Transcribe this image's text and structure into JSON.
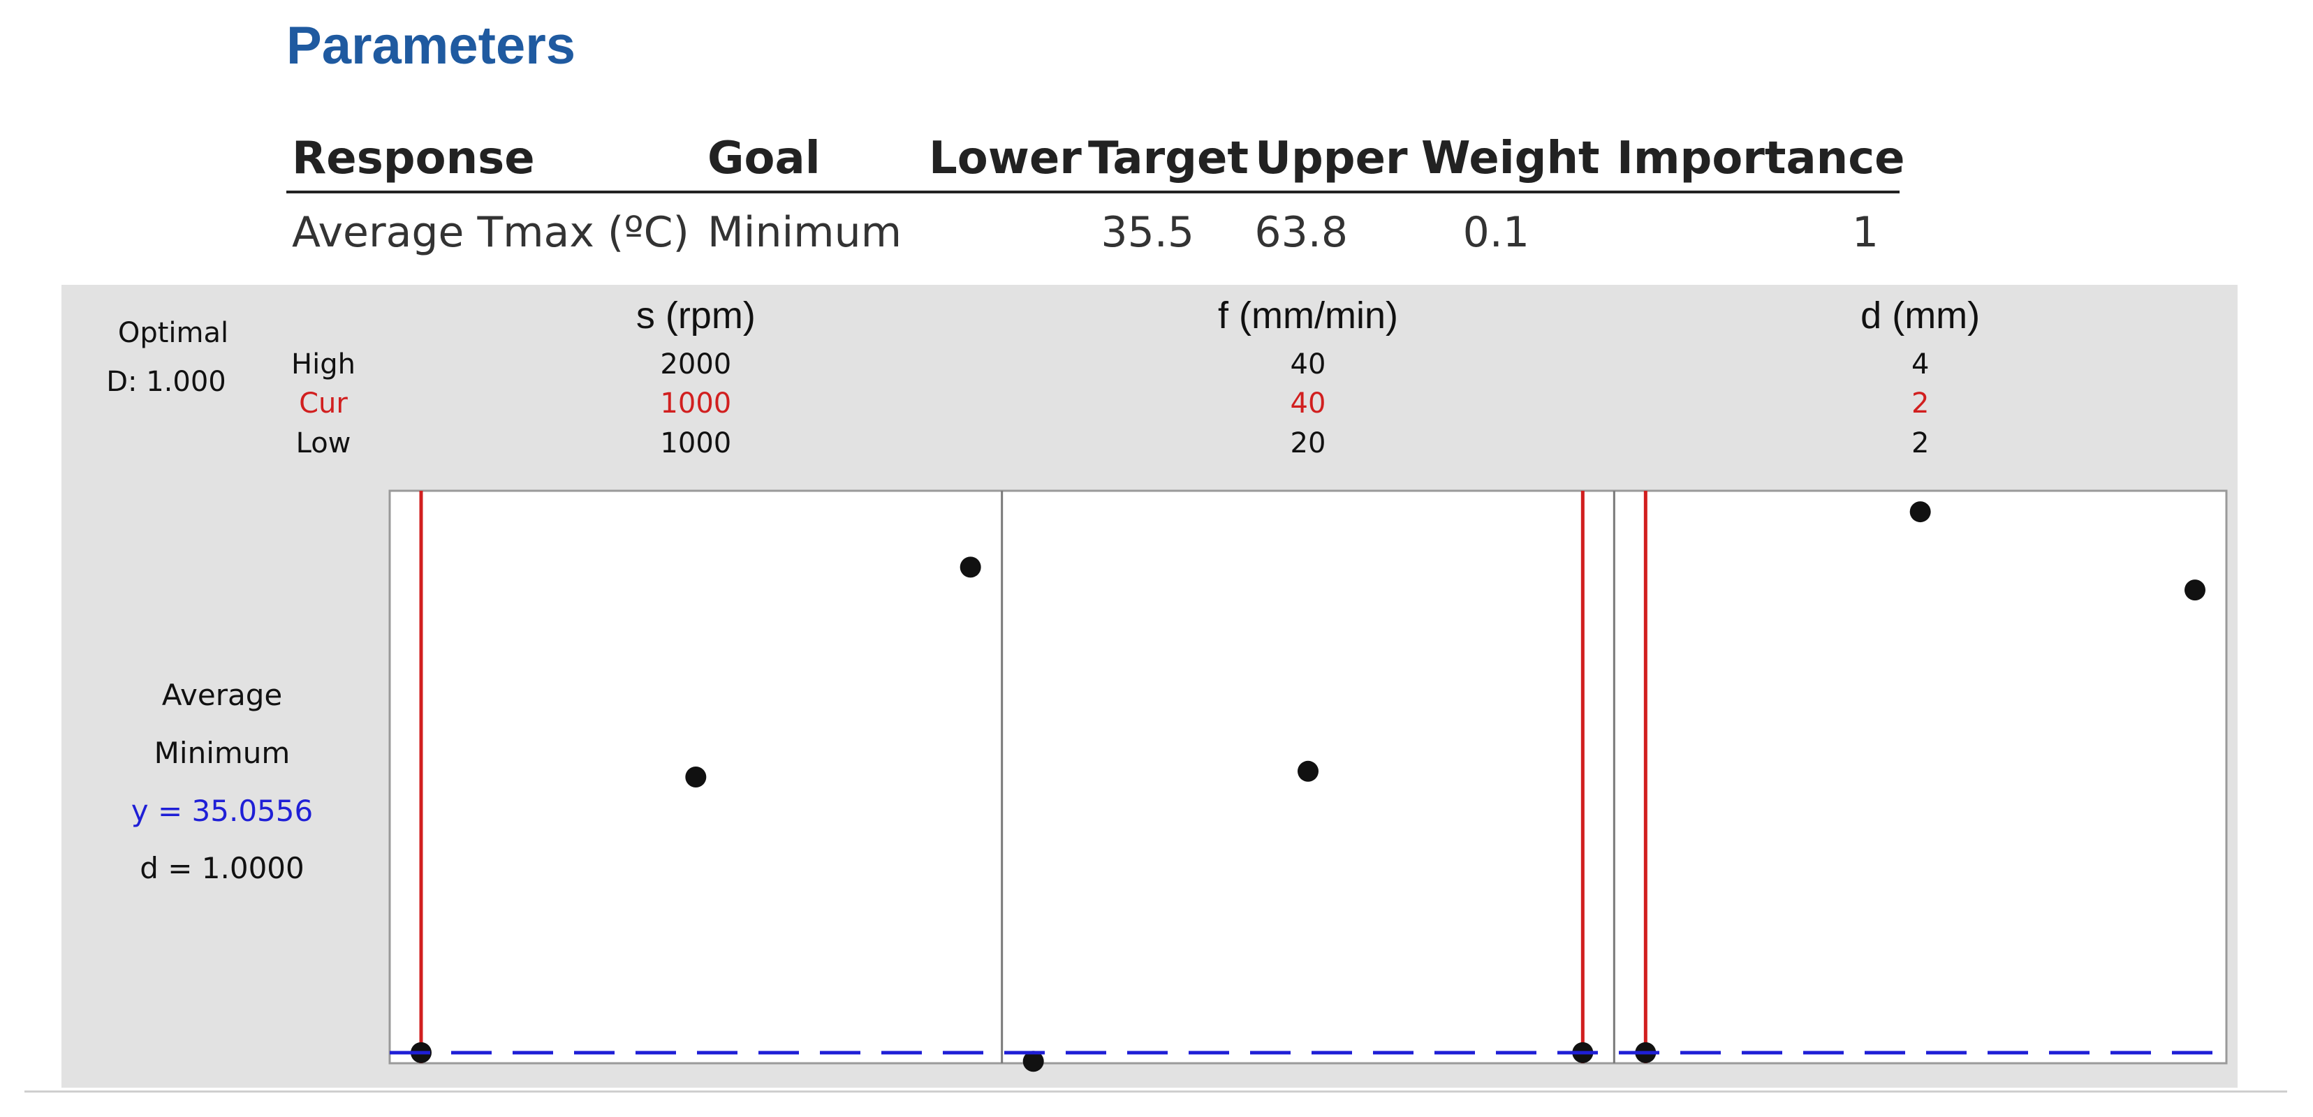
{
  "heading": "Parameters",
  "parameters_table": {
    "headers": [
      "Response",
      "Goal",
      "Lower",
      "Target",
      "Upper",
      "Weight",
      "Importance"
    ],
    "row": {
      "response": "Average Tmax (ºC)",
      "goal": "Minimum",
      "lower": "",
      "target": "35.5",
      "upper": "63.8",
      "weight": "0.1",
      "importance": "1"
    }
  },
  "optimizer": {
    "optimal_label": "Optimal",
    "desirability_label": "D: 1.000",
    "level_labels": {
      "high": "High",
      "cur": "Cur",
      "low": "Low"
    },
    "response_block": {
      "name": "Average",
      "goal": "Minimum",
      "y_text": "y = 35.0556",
      "d_text": "d = 1.0000"
    },
    "colors": {
      "current": "#d11f1f",
      "predicted": "#1f1fd6",
      "point": "#111111",
      "panel": "#e2e2e2"
    }
  },
  "chart_data": {
    "type": "scatter",
    "y_predicted": 35.0556,
    "y_range": [
      34.5,
      64.5
    ],
    "factors": [
      {
        "name": "s (rpm)",
        "high": "2000",
        "cur": "1000",
        "low": "1000",
        "x_range": [
          1000,
          2000
        ],
        "current_x": 1000,
        "points": [
          [
            1000,
            35.0556
          ],
          [
            1500,
            49.5
          ],
          [
            2000,
            60.5
          ]
        ]
      },
      {
        "name": "f (mm/min)",
        "high": "40",
        "cur": "40",
        "low": "20",
        "x_range": [
          20,
          40
        ],
        "current_x": 40,
        "points": [
          [
            20,
            34.6
          ],
          [
            30,
            49.8
          ],
          [
            40,
            35.0556
          ]
        ]
      },
      {
        "name": "d (mm)",
        "high": "4",
        "cur": "2",
        "low": "2",
        "x_range": [
          2,
          4
        ],
        "current_x": 2,
        "points": [
          [
            2,
            35.0556
          ],
          [
            3,
            63.4
          ],
          [
            4,
            59.3
          ]
        ]
      }
    ]
  }
}
